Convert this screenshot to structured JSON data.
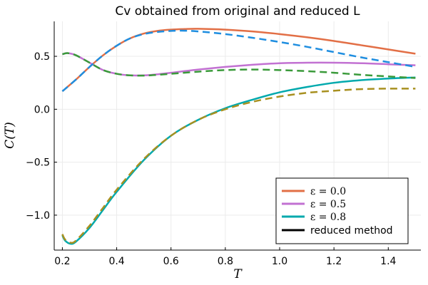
{
  "chart_data": {
    "type": "line",
    "title": "Cv obtained from original and reduced L",
    "xlabel": "T",
    "ylabel": "C(T)",
    "xlim": [
      0.17,
      1.52
    ],
    "ylim": [
      -1.33,
      0.83
    ],
    "xticks": [
      0.2,
      0.4,
      0.6,
      0.8,
      1.0,
      1.2,
      1.4
    ],
    "xtick_labels": [
      "0.2",
      "0.4",
      "0.6",
      "0.8",
      "1.0",
      "1.2",
      "1.4"
    ],
    "yticks": [
      -1.0,
      -0.5,
      0.0,
      0.5
    ],
    "ytick_labels": [
      "−1.0",
      "−0.5",
      "0.0",
      "0.5"
    ],
    "grid": true,
    "legend_position": "bottom-right",
    "series": [
      {
        "name": "ε = 0.0",
        "style": "solid",
        "color": "#e26f46",
        "x": [
          0.2,
          0.25,
          0.3,
          0.35,
          0.4,
          0.45,
          0.5,
          0.55,
          0.6,
          0.65,
          0.7,
          0.8,
          0.9,
          1.0,
          1.1,
          1.2,
          1.3,
          1.4,
          1.5
        ],
        "y": [
          0.17,
          0.28,
          0.4,
          0.51,
          0.6,
          0.67,
          0.715,
          0.74,
          0.752,
          0.758,
          0.76,
          0.752,
          0.735,
          0.71,
          0.68,
          0.645,
          0.605,
          0.565,
          0.525
        ]
      },
      {
        "name": "ε = 0.5",
        "style": "solid",
        "color": "#c271d2",
        "x": [
          0.2,
          0.22,
          0.25,
          0.3,
          0.35,
          0.4,
          0.45,
          0.5,
          0.55,
          0.6,
          0.7,
          0.8,
          0.9,
          1.0,
          1.1,
          1.2,
          1.3,
          1.4,
          1.5
        ],
        "y": [
          0.52,
          0.53,
          0.51,
          0.44,
          0.37,
          0.335,
          0.32,
          0.32,
          0.33,
          0.345,
          0.375,
          0.4,
          0.42,
          0.435,
          0.44,
          0.44,
          0.435,
          0.425,
          0.415
        ]
      },
      {
        "name": "ε = 0.8",
        "style": "solid",
        "color": "#00a9ad",
        "x": [
          0.2,
          0.21,
          0.23,
          0.25,
          0.3,
          0.35,
          0.4,
          0.5,
          0.6,
          0.7,
          0.8,
          0.9,
          1.0,
          1.1,
          1.2,
          1.3,
          1.4,
          1.5
        ],
        "y": [
          -1.19,
          -1.24,
          -1.27,
          -1.25,
          -1.12,
          -0.95,
          -0.78,
          -0.48,
          -0.25,
          -0.1,
          0.01,
          0.09,
          0.16,
          0.21,
          0.25,
          0.275,
          0.29,
          0.3
        ]
      },
      {
        "name": "reduced method",
        "style": "dashed",
        "color": "#1f8ee0",
        "legend_color": "#000000",
        "x": [
          0.2,
          0.25,
          0.3,
          0.35,
          0.4,
          0.45,
          0.5,
          0.55,
          0.6,
          0.65,
          0.7,
          0.8,
          0.9,
          1.0,
          1.1,
          1.2,
          1.3,
          1.4,
          1.5
        ],
        "y": [
          0.17,
          0.28,
          0.4,
          0.51,
          0.6,
          0.67,
          0.71,
          0.73,
          0.74,
          0.742,
          0.735,
          0.71,
          0.675,
          0.635,
          0.59,
          0.54,
          0.49,
          0.445,
          0.4
        ]
      },
      {
        "style": "dashed",
        "color": "#3a9a3a",
        "x": [
          0.2,
          0.22,
          0.25,
          0.3,
          0.35,
          0.4,
          0.45,
          0.5,
          0.55,
          0.6,
          0.7,
          0.8,
          0.9,
          1.0,
          1.1,
          1.2,
          1.3,
          1.4,
          1.5
        ],
        "y": [
          0.52,
          0.53,
          0.51,
          0.44,
          0.37,
          0.335,
          0.32,
          0.318,
          0.325,
          0.335,
          0.355,
          0.37,
          0.375,
          0.37,
          0.36,
          0.345,
          0.325,
          0.31,
          0.295
        ]
      },
      {
        "style": "dashed",
        "color": "#a89020",
        "x": [
          0.2,
          0.21,
          0.23,
          0.25,
          0.3,
          0.35,
          0.4,
          0.5,
          0.6,
          0.7,
          0.8,
          0.9,
          1.0,
          1.1,
          1.2,
          1.3,
          1.4,
          1.5
        ],
        "y": [
          -1.18,
          -1.23,
          -1.26,
          -1.24,
          -1.1,
          -0.93,
          -0.76,
          -0.47,
          -0.25,
          -0.1,
          0.0,
          0.07,
          0.12,
          0.155,
          0.175,
          0.19,
          0.195,
          0.195
        ]
      }
    ]
  }
}
